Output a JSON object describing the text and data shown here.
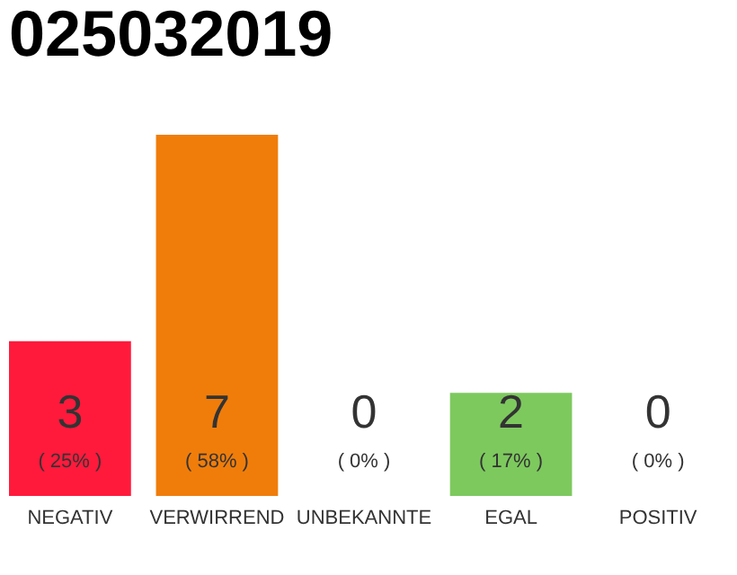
{
  "chart_data": {
    "type": "bar",
    "title": "025032019",
    "categories": [
      "NEGATIV",
      "VERWIRREND",
      "UNBEKANNTE",
      "EGAL",
      "POSITIV"
    ],
    "values": [
      3,
      7,
      0,
      2,
      0
    ],
    "colors": [
      "#ff1a3c",
      "#f07d0a",
      "#cccccc",
      "#7dc95e",
      "#cccccc"
    ],
    "ylim": [
      0,
      7
    ],
    "tick_labels": "x",
    "data_labels": true,
    "annotations": [
      "( 25% )",
      "( 58% )",
      "( 0% )",
      "( 17% )",
      "( 0% )"
    ]
  }
}
